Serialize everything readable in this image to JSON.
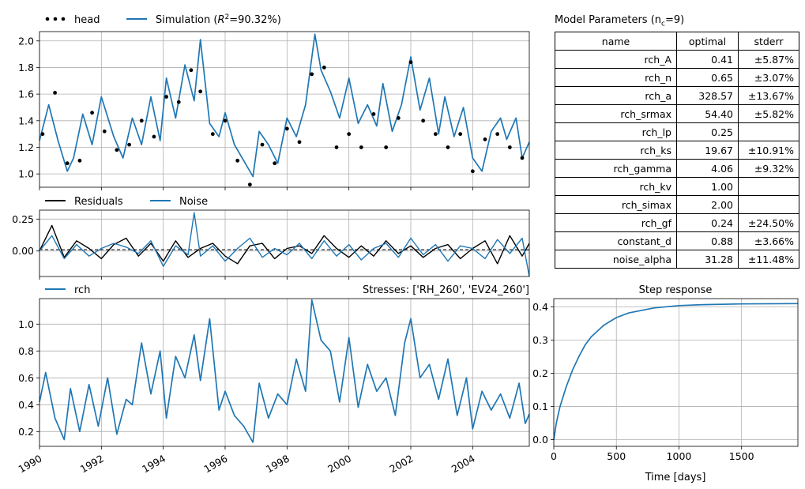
{
  "x_ticks": [
    "1990",
    "1992",
    "1994",
    "1996",
    "1998",
    "2000",
    "2002",
    "2004"
  ],
  "params": {
    "title": "Model Parameters (n",
    "title_sub": "c",
    "title_end": "=9)",
    "headers": [
      "name",
      "optimal",
      "stderr"
    ],
    "rows": [
      {
        "name": "rch_A",
        "optimal": "0.41",
        "stderr": "±5.87%"
      },
      {
        "name": "rch_n",
        "optimal": "0.65",
        "stderr": "±3.07%"
      },
      {
        "name": "rch_a",
        "optimal": "328.57",
        "stderr": "±13.67%"
      },
      {
        "name": "rch_srmax",
        "optimal": "54.40",
        "stderr": "±5.82%"
      },
      {
        "name": "rch_lp",
        "optimal": "0.25",
        "stderr": ""
      },
      {
        "name": "rch_ks",
        "optimal": "19.67",
        "stderr": "±10.91%"
      },
      {
        "name": "rch_gamma",
        "optimal": "4.06",
        "stderr": "±9.32%"
      },
      {
        "name": "rch_kv",
        "optimal": "1.00",
        "stderr": ""
      },
      {
        "name": "rch_simax",
        "optimal": "2.00",
        "stderr": ""
      },
      {
        "name": "rch_gf",
        "optimal": "0.24",
        "stderr": "±24.50%"
      },
      {
        "name": "constant_d",
        "optimal": "0.88",
        "stderr": "±3.66%"
      },
      {
        "name": "noise_alpha",
        "optimal": "31.28",
        "stderr": "±11.48%"
      }
    ]
  },
  "chart_data": [
    {
      "type": "line",
      "panel": "head-simulation",
      "legend_placement": "top-left",
      "legend": {
        "head": "head",
        "sim_prefix": "Simulation (",
        "sim_r": "R",
        "sim_sup": "2",
        "sim_suffix": "=90.32%)"
      },
      "x_range": [
        1990.0,
        2005.83
      ],
      "ylim": [
        0.9,
        2.07
      ],
      "yticks": [
        "1.0",
        "1.2",
        "1.4",
        "1.6",
        "1.8",
        "2.0"
      ],
      "grid": true,
      "colors": {
        "head": "#000000",
        "simulation": "#1f77b4"
      },
      "series": [
        {
          "name": "Simulation",
          "x": [
            1990.0,
            1990.3,
            1990.6,
            1990.9,
            1991.1,
            1991.4,
            1991.7,
            1992.0,
            1992.4,
            1992.7,
            1993.0,
            1993.3,
            1993.6,
            1993.9,
            1994.1,
            1994.4,
            1994.7,
            1995.0,
            1995.2,
            1995.5,
            1995.8,
            1996.0,
            1996.3,
            1996.6,
            1996.9,
            1997.1,
            1997.4,
            1997.7,
            1998.0,
            1998.3,
            1998.6,
            1998.9,
            1999.1,
            1999.4,
            1999.7,
            2000.0,
            2000.3,
            2000.6,
            2000.9,
            2001.1,
            2001.4,
            2001.7,
            2002.0,
            2002.3,
            2002.6,
            2002.9,
            2003.1,
            2003.4,
            2003.7,
            2004.0,
            2004.3,
            2004.6,
            2004.9,
            2005.1,
            2005.4,
            2005.6,
            2005.83
          ],
          "y": [
            1.25,
            1.52,
            1.25,
            1.02,
            1.12,
            1.45,
            1.22,
            1.58,
            1.28,
            1.12,
            1.42,
            1.22,
            1.58,
            1.25,
            1.72,
            1.42,
            1.82,
            1.55,
            2.01,
            1.38,
            1.28,
            1.46,
            1.22,
            1.1,
            0.98,
            1.32,
            1.22,
            1.08,
            1.42,
            1.28,
            1.52,
            2.05,
            1.78,
            1.62,
            1.42,
            1.72,
            1.38,
            1.52,
            1.36,
            1.68,
            1.32,
            1.52,
            1.88,
            1.48,
            1.72,
            1.3,
            1.58,
            1.28,
            1.5,
            1.12,
            1.02,
            1.32,
            1.42,
            1.26,
            1.42,
            1.12,
            1.24
          ]
        },
        {
          "name": "head",
          "x": [
            1990.1,
            1990.5,
            1990.9,
            1991.3,
            1991.7,
            1992.1,
            1992.5,
            1992.9,
            1993.3,
            1993.7,
            1994.1,
            1994.5,
            1994.9,
            1995.2,
            1995.6,
            1996.0,
            1996.4,
            1996.8,
            1997.2,
            1997.6,
            1998.0,
            1998.4,
            1998.8,
            1999.2,
            1999.6,
            2000.0,
            2000.4,
            2000.8,
            2001.2,
            2001.6,
            2002.0,
            2002.4,
            2002.8,
            2003.2,
            2003.6,
            2004.0,
            2004.4,
            2004.8,
            2005.2,
            2005.6
          ],
          "y": [
            1.3,
            1.61,
            1.08,
            1.1,
            1.46,
            1.32,
            1.18,
            1.22,
            1.4,
            1.28,
            1.58,
            1.54,
            1.78,
            1.62,
            1.3,
            1.4,
            1.1,
            0.92,
            1.22,
            1.08,
            1.34,
            1.24,
            1.75,
            1.8,
            1.2,
            1.3,
            1.2,
            1.45,
            1.2,
            1.42,
            1.84,
            1.4,
            1.3,
            1.2,
            1.3,
            1.02,
            1.26,
            1.3,
            1.2,
            1.12
          ]
        }
      ]
    },
    {
      "type": "line",
      "panel": "residuals-noise",
      "legend_placement": "top-left",
      "legend": {
        "residuals": "Residuals",
        "noise": "Noise"
      },
      "x_range": [
        1990.0,
        2005.83
      ],
      "ylim": [
        -0.2,
        0.32
      ],
      "yticks": [
        "0.00",
        "0.25"
      ],
      "grid": true,
      "colors": {
        "residuals": "#000000",
        "noise": "#1f77b4"
      },
      "series": [
        {
          "name": "Residuals",
          "x": [
            1990.0,
            1990.4,
            1990.8,
            1991.2,
            1991.6,
            1992.0,
            1992.4,
            1992.8,
            1993.2,
            1993.6,
            1994.0,
            1994.4,
            1994.8,
            1995.2,
            1995.6,
            1996.0,
            1996.4,
            1996.8,
            1997.2,
            1997.6,
            1998.0,
            1998.4,
            1998.8,
            1999.2,
            1999.6,
            2000.0,
            2000.4,
            2000.8,
            2001.2,
            2001.6,
            2002.0,
            2002.4,
            2002.8,
            2003.2,
            2003.6,
            2004.0,
            2004.4,
            2004.8,
            2005.2,
            2005.6,
            2005.83
          ],
          "y": [
            0.0,
            0.2,
            -0.05,
            0.08,
            0.02,
            -0.06,
            0.05,
            0.1,
            -0.04,
            0.06,
            -0.08,
            0.08,
            -0.05,
            0.02,
            0.06,
            -0.04,
            -0.1,
            0.04,
            0.06,
            -0.06,
            0.02,
            0.04,
            -0.02,
            0.12,
            0.02,
            -0.05,
            0.04,
            -0.04,
            0.08,
            -0.02,
            0.04,
            -0.05,
            0.02,
            0.05,
            -0.06,
            0.02,
            0.08,
            -0.1,
            0.12,
            -0.04,
            0.06
          ]
        },
        {
          "name": "Noise",
          "x": [
            1990.0,
            1990.4,
            1990.8,
            1991.2,
            1991.6,
            1992.0,
            1992.4,
            1992.8,
            1993.2,
            1993.6,
            1994.0,
            1994.4,
            1994.8,
            1995.0,
            1995.2,
            1995.6,
            1996.0,
            1996.4,
            1996.8,
            1997.2,
            1997.6,
            1998.0,
            1998.4,
            1998.8,
            1999.2,
            1999.6,
            2000.0,
            2000.4,
            2000.8,
            2001.2,
            2001.6,
            2002.0,
            2002.4,
            2002.8,
            2003.2,
            2003.6,
            2004.0,
            2004.4,
            2004.8,
            2005.2,
            2005.6,
            2005.83
          ],
          "y": [
            0.0,
            0.12,
            -0.06,
            0.05,
            -0.04,
            0.02,
            0.06,
            0.03,
            -0.02,
            0.08,
            -0.12,
            0.04,
            -0.03,
            0.3,
            -0.04,
            0.04,
            -0.08,
            0.02,
            0.1,
            -0.05,
            0.02,
            -0.03,
            0.06,
            -0.06,
            0.08,
            -0.04,
            0.05,
            -0.07,
            0.02,
            0.06,
            -0.05,
            0.1,
            -0.03,
            0.05,
            -0.08,
            0.04,
            0.02,
            -0.06,
            0.09,
            -0.02,
            0.1,
            -0.2
          ]
        }
      ]
    },
    {
      "type": "line",
      "panel": "recharge",
      "legend_placement": "top-left",
      "legend": {
        "rch": "rch"
      },
      "title_right": "Stresses: ['RH_260', 'EV24_260']",
      "x_range": [
        1990.0,
        2005.83
      ],
      "ylim": [
        0.09,
        1.19
      ],
      "yticks": [
        "0.2",
        "0.4",
        "0.6",
        "0.8",
        "1.0"
      ],
      "grid": true,
      "colors": {
        "rch": "#1f77b4"
      },
      "series": [
        {
          "name": "rch",
          "x": [
            1990.0,
            1990.2,
            1990.5,
            1990.8,
            1991.0,
            1991.3,
            1991.6,
            1991.9,
            1992.2,
            1992.5,
            1992.8,
            1993.0,
            1993.3,
            1993.6,
            1993.9,
            1994.1,
            1994.4,
            1994.7,
            1995.0,
            1995.2,
            1995.5,
            1995.8,
            1996.0,
            1996.3,
            1996.6,
            1996.9,
            1997.1,
            1997.4,
            1997.7,
            1998.0,
            1998.3,
            1998.6,
            1998.8,
            1999.1,
            1999.4,
            1999.7,
            2000.0,
            2000.3,
            2000.6,
            2000.9,
            2001.2,
            2001.5,
            2001.8,
            2002.0,
            2002.3,
            2002.6,
            2002.9,
            2003.2,
            2003.5,
            2003.8,
            2004.0,
            2004.3,
            2004.6,
            2004.9,
            2005.2,
            2005.5,
            2005.7,
            2005.83
          ],
          "y": [
            0.42,
            0.64,
            0.3,
            0.14,
            0.52,
            0.2,
            0.55,
            0.24,
            0.6,
            0.18,
            0.44,
            0.4,
            0.86,
            0.48,
            0.8,
            0.3,
            0.76,
            0.6,
            0.92,
            0.58,
            1.04,
            0.36,
            0.5,
            0.32,
            0.24,
            0.12,
            0.56,
            0.3,
            0.48,
            0.4,
            0.74,
            0.5,
            1.18,
            0.88,
            0.8,
            0.42,
            0.9,
            0.38,
            0.7,
            0.5,
            0.6,
            0.32,
            0.86,
            1.04,
            0.6,
            0.7,
            0.44,
            0.74,
            0.32,
            0.6,
            0.22,
            0.5,
            0.36,
            0.48,
            0.3,
            0.56,
            0.26,
            0.33
          ]
        }
      ]
    },
    {
      "type": "line",
      "panel": "step-response",
      "title": "Step response",
      "xlabel": "Time [days]",
      "x_range": [
        0,
        1950
      ],
      "ylim": [
        -0.02,
        0.425
      ],
      "xticks": [
        "0",
        "500",
        "1000",
        "1500"
      ],
      "yticks": [
        "0.0",
        "0.1",
        "0.2",
        "0.3",
        "0.4"
      ],
      "grid": true,
      "colors": {
        "step": "#1f77b4"
      },
      "series": [
        {
          "name": "",
          "x": [
            0,
            20,
            50,
            100,
            150,
            200,
            250,
            300,
            400,
            500,
            600,
            800,
            1000,
            1200,
            1500,
            1950
          ],
          "y": [
            0.0,
            0.05,
            0.1,
            0.16,
            0.21,
            0.25,
            0.285,
            0.31,
            0.345,
            0.368,
            0.382,
            0.397,
            0.404,
            0.407,
            0.409,
            0.41
          ]
        }
      ]
    }
  ]
}
